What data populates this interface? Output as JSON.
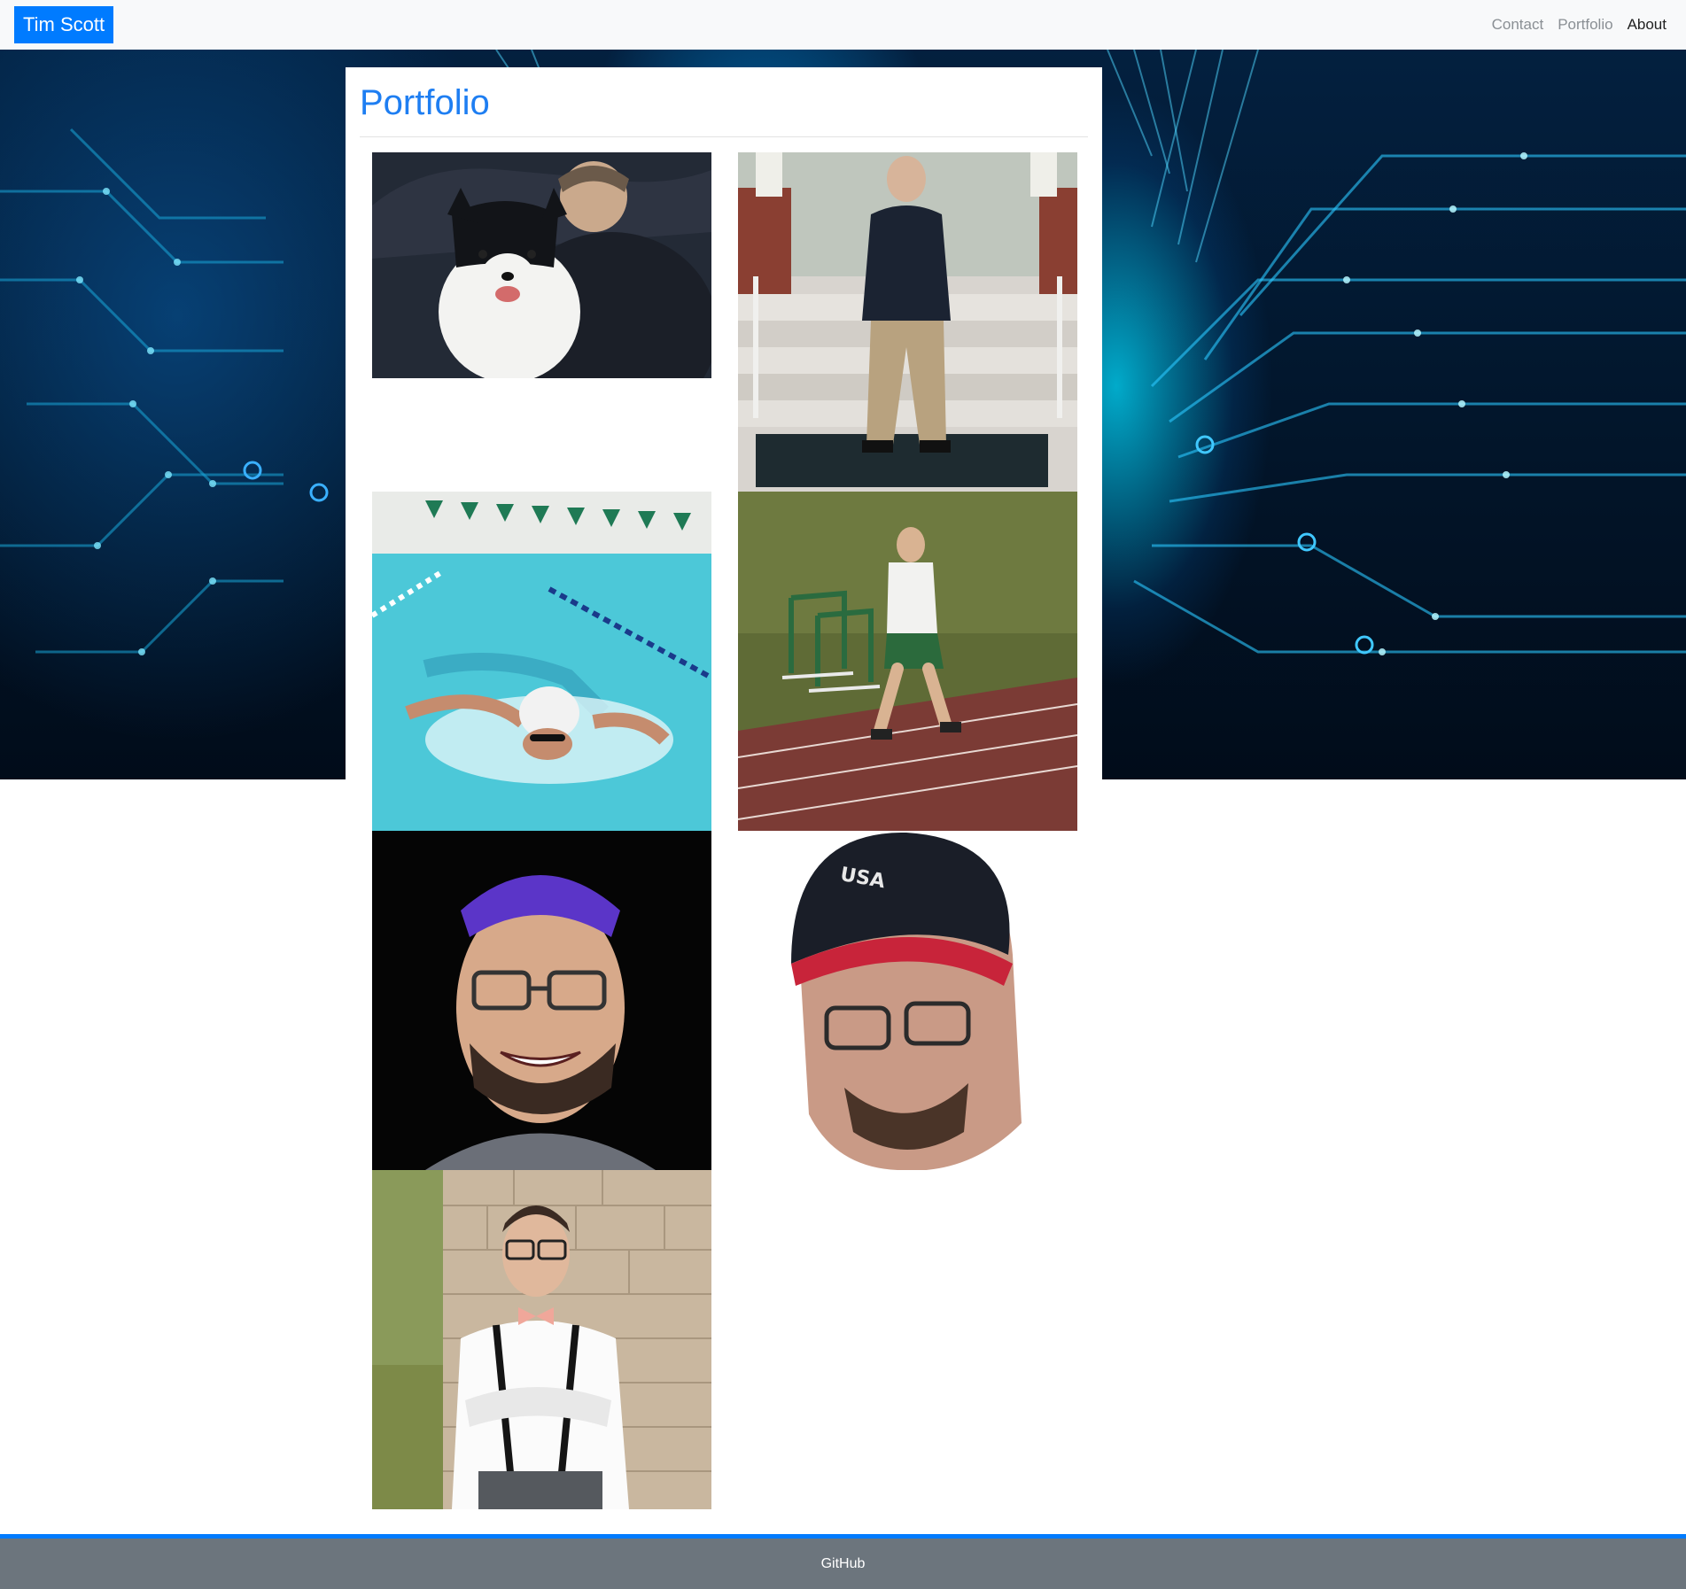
{
  "navbar": {
    "brand": "Tim Scott",
    "links": [
      "Contact",
      "Portfolio",
      "About"
    ]
  },
  "portfolio": {
    "title": "Portfolio"
  },
  "footer": {
    "link": "GitHub"
  },
  "colors": {
    "brand_blue": "#007bff",
    "title_blue": "#1e7ef2",
    "footer_gray": "#6c757d",
    "navbar_bg": "#f8f9fa"
  }
}
